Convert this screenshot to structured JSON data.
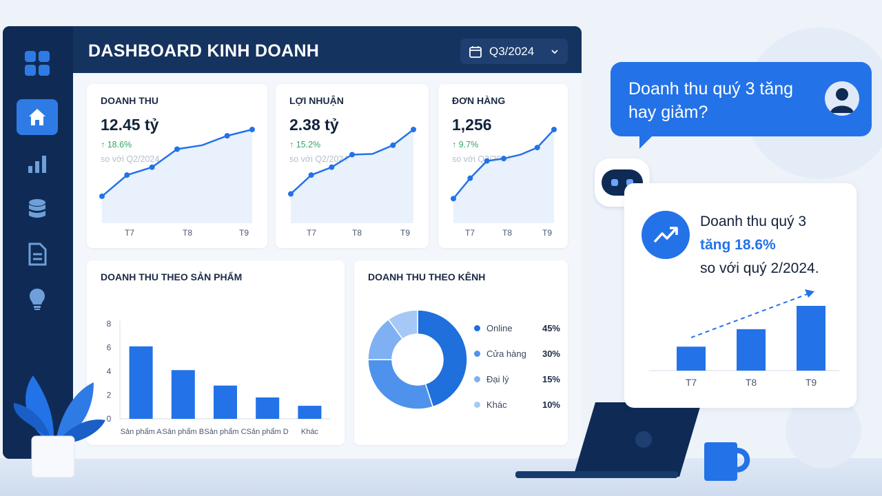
{
  "header": {
    "title": "DASHBOARD KINH DOANH",
    "period_label": "Q3/2024"
  },
  "sidebar": {
    "items": [
      {
        "icon": "grid-icon"
      },
      {
        "icon": "home-icon",
        "active": true
      },
      {
        "icon": "bar-chart-icon"
      },
      {
        "icon": "database-icon"
      },
      {
        "icon": "document-icon"
      },
      {
        "icon": "lightbulb-icon"
      }
    ]
  },
  "kpis": [
    {
      "title": "DOANH THU",
      "value": "12.45 tỷ",
      "delta": "↑ 18.6%",
      "compare": "so với Q2/2024"
    },
    {
      "title": "LỢI NHUẬN",
      "value": "2.38 tỷ",
      "delta": "↑ 15.2%",
      "compare": "so với Q2/2024"
    },
    {
      "title": "ĐƠN HÀNG",
      "value": "1,256",
      "delta": "↑ 9.7%",
      "compare": "so với Q2/2024"
    }
  ],
  "chart_data": [
    {
      "type": "line",
      "title": "DOANH THU",
      "x_ticks": [
        "T7",
        "T8",
        "T9"
      ],
      "series": [
        {
          "values": [
            0.15,
            0.42,
            0.52,
            0.75,
            0.8,
            0.92,
            1.0
          ],
          "note": "relative trend"
        }
      ],
      "area_fill": true
    },
    {
      "type": "line",
      "title": "LỢI NHUẬN",
      "x_ticks": [
        "T7",
        "T8",
        "T9"
      ],
      "series": [
        {
          "values": [
            0.18,
            0.42,
            0.52,
            0.68,
            0.69,
            0.8,
            1.0
          ]
        }
      ],
      "area_fill": true
    },
    {
      "type": "line",
      "title": "ĐƠN HÀNG",
      "x_ticks": [
        "T7",
        "T8",
        "T9"
      ],
      "series": [
        {
          "values": [
            0.12,
            0.38,
            0.6,
            0.63,
            0.68,
            0.77,
            1.0
          ]
        }
      ],
      "area_fill": true
    },
    {
      "type": "bar",
      "title": "DOANH THU THEO SẢN PHẨM",
      "categories": [
        "Sản phẩm A",
        "Sản phẩm B",
        "Sản phẩm C",
        "Sản phẩm D",
        "Khác"
      ],
      "values": [
        6.1,
        4.1,
        2.8,
        1.8,
        1.1
      ],
      "ylim": [
        0,
        8
      ],
      "y_ticks": [
        0,
        2,
        4,
        6,
        8
      ],
      "color": "#2372e8"
    },
    {
      "type": "pie",
      "title": "DOANH THU THEO KÊNH",
      "donut": true,
      "categories": [
        "Online",
        "Cửa hàng",
        "Đại lý",
        "Khác"
      ],
      "values": [
        45,
        30,
        15,
        10
      ],
      "value_labels": [
        "45%",
        "30%",
        "15%",
        "10%"
      ],
      "colors": [
        "#1f6fdc",
        "#4f92ec",
        "#7fb0f2",
        "#a6c8f6"
      ]
    },
    {
      "type": "bar",
      "categories": [
        "T7",
        "T8",
        "T9"
      ],
      "values": [
        0.37,
        0.64,
        1.0
      ],
      "trend_arrow": true,
      "color": "#2372e8"
    }
  ],
  "chat": {
    "question": "Doanh thu quý 3 tăng hay giảm?",
    "answer_line1": "Doanh thu quý 3",
    "answer_line2": "tăng 18.6%",
    "answer_line3": "so với quý 2/2024."
  },
  "colors": {
    "navy": "#0f2b55",
    "accent": "#2372e8",
    "positive": "#2fa866"
  }
}
